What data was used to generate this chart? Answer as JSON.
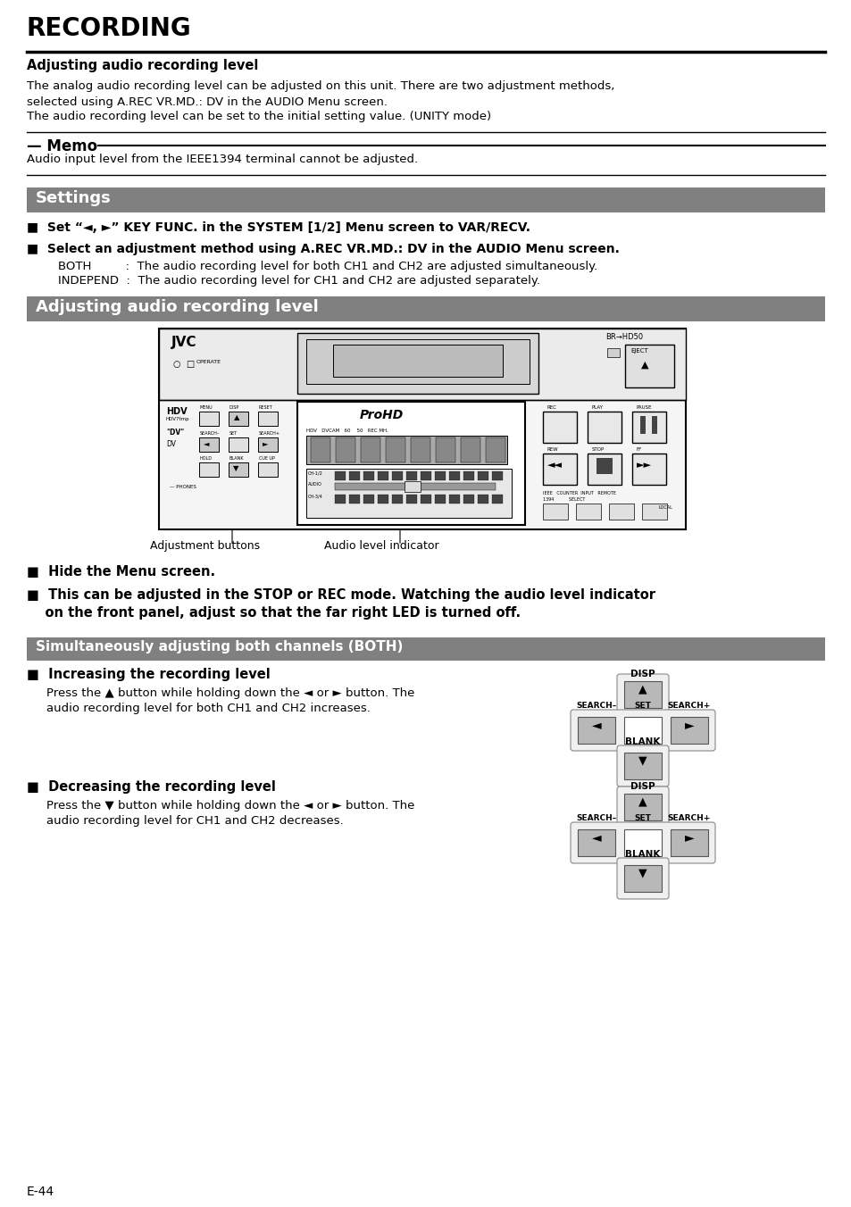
{
  "bg_color": "#ffffff",
  "page_number": "E-44",
  "main_title": "RECORDING",
  "subtitle": "Adjusting audio recording level",
  "body_text1": "The analog audio recording level can be adjusted on this unit. There are two adjustment methods,",
  "body_text2": "selected using A.REC VR.MD.: DV in the AUDIO Menu screen.",
  "body_text3": "The audio recording level can be set to the initial setting value. (UNITY mode)",
  "memo_title": "— Memo",
  "memo_text": "Audio input level from the IEEE1394 terminal cannot be adjusted.",
  "settings_title": "Settings",
  "bullet1": "■  Set “◄, ►” KEY FUNC. in the SYSTEM [1/2] Menu screen to VAR/RECV.",
  "bullet2": "■  Select an adjustment method using A.REC VR.MD.: DV in the AUDIO Menu screen.",
  "both_line": "BOTH         :  The audio recording level for both CH1 and CH2 are adjusted simultaneously.",
  "independ_line": "INDEPEND  :  The audio recording level for CH1 and CH2 are adjusted separately.",
  "adj_title": "Adjusting audio recording level",
  "caption1": "Adjustment buttons",
  "caption2": "Audio level indicator",
  "bullet3": "■  Hide the Menu screen.",
  "bullet4a": "■  This can be adjusted in the STOP or REC mode. Watching the audio level indicator",
  "bullet4b": "    on the front panel, adjust so that the far right LED is turned off.",
  "both_channels_title": "Simultaneously adjusting both channels (BOTH)",
  "increase_title": "■  Increasing the recording level",
  "increase_text1": "Press the ▲ button while holding down the ◄ or ► button. The",
  "increase_text2": "audio recording level for both CH1 and CH2 increases.",
  "decrease_title": "■  Decreasing the recording level",
  "decrease_text1": "Press the ▼ button while holding down the ◄ or ► button. The",
  "decrease_text2": "audio recording level for CH1 and CH2 decreases.",
  "gray_color": "#808080",
  "light_gray": "#c8c8c8",
  "btn_gray": "#b0b0b0"
}
